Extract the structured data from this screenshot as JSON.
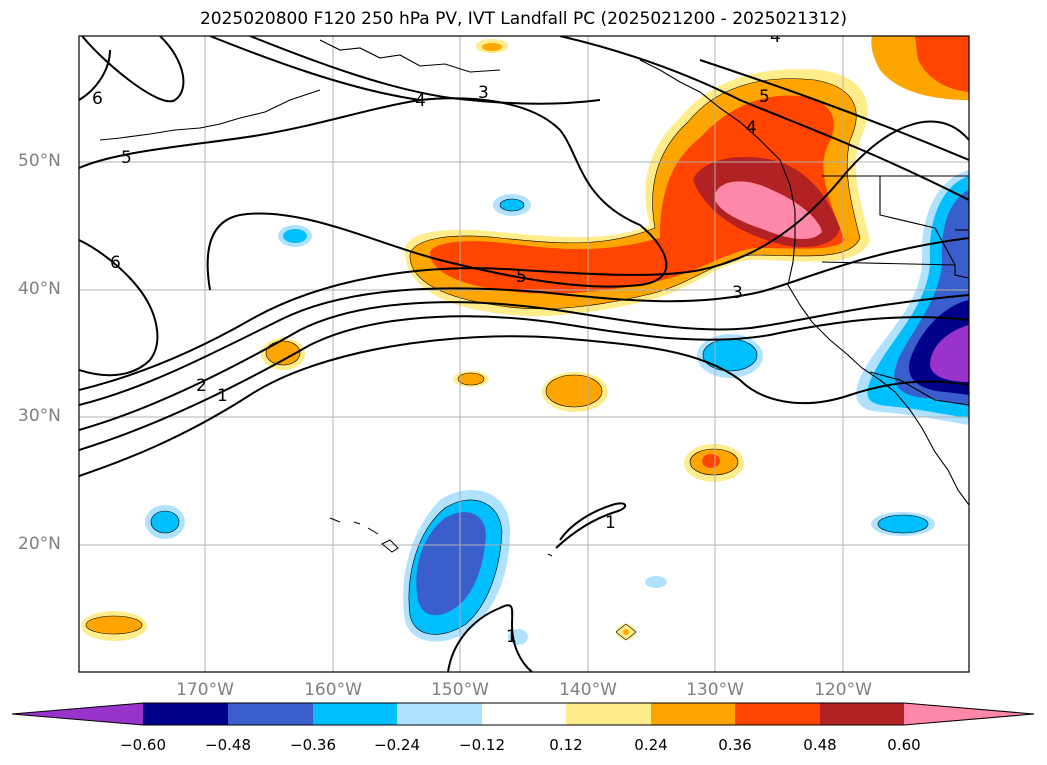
{
  "title": "2025020800 F120 250 hPa PV, IVT Landfall PC (2025021200 - 2025021312)",
  "map": {
    "lat_labels": [
      "50°N",
      "40°N",
      "30°N",
      "20°N"
    ],
    "lon_labels": [
      "170°W",
      "160°W",
      "150°W",
      "140°W",
      "130°W",
      "120°W"
    ],
    "gridlines": true,
    "contour_labels": [
      "6",
      "4",
      "3",
      "5",
      "4",
      "5",
      "6",
      "5",
      "4",
      "3",
      "2",
      "1",
      "1",
      "1"
    ]
  },
  "colorbar": {
    "tick_labels": [
      "−0.60",
      "−0.48",
      "−0.36",
      "−0.24",
      "−0.12",
      "0.12",
      "0.24",
      "0.36",
      "0.48",
      "0.60"
    ],
    "colors": [
      "#9933cc",
      "#00008b",
      "#3a5fcd",
      "#00bfff",
      "#b0e2ff",
      "#ffffff",
      "#ffec8b",
      "#ffa500",
      "#ff4500",
      "#b22222",
      "#ff88aa"
    ]
  }
}
